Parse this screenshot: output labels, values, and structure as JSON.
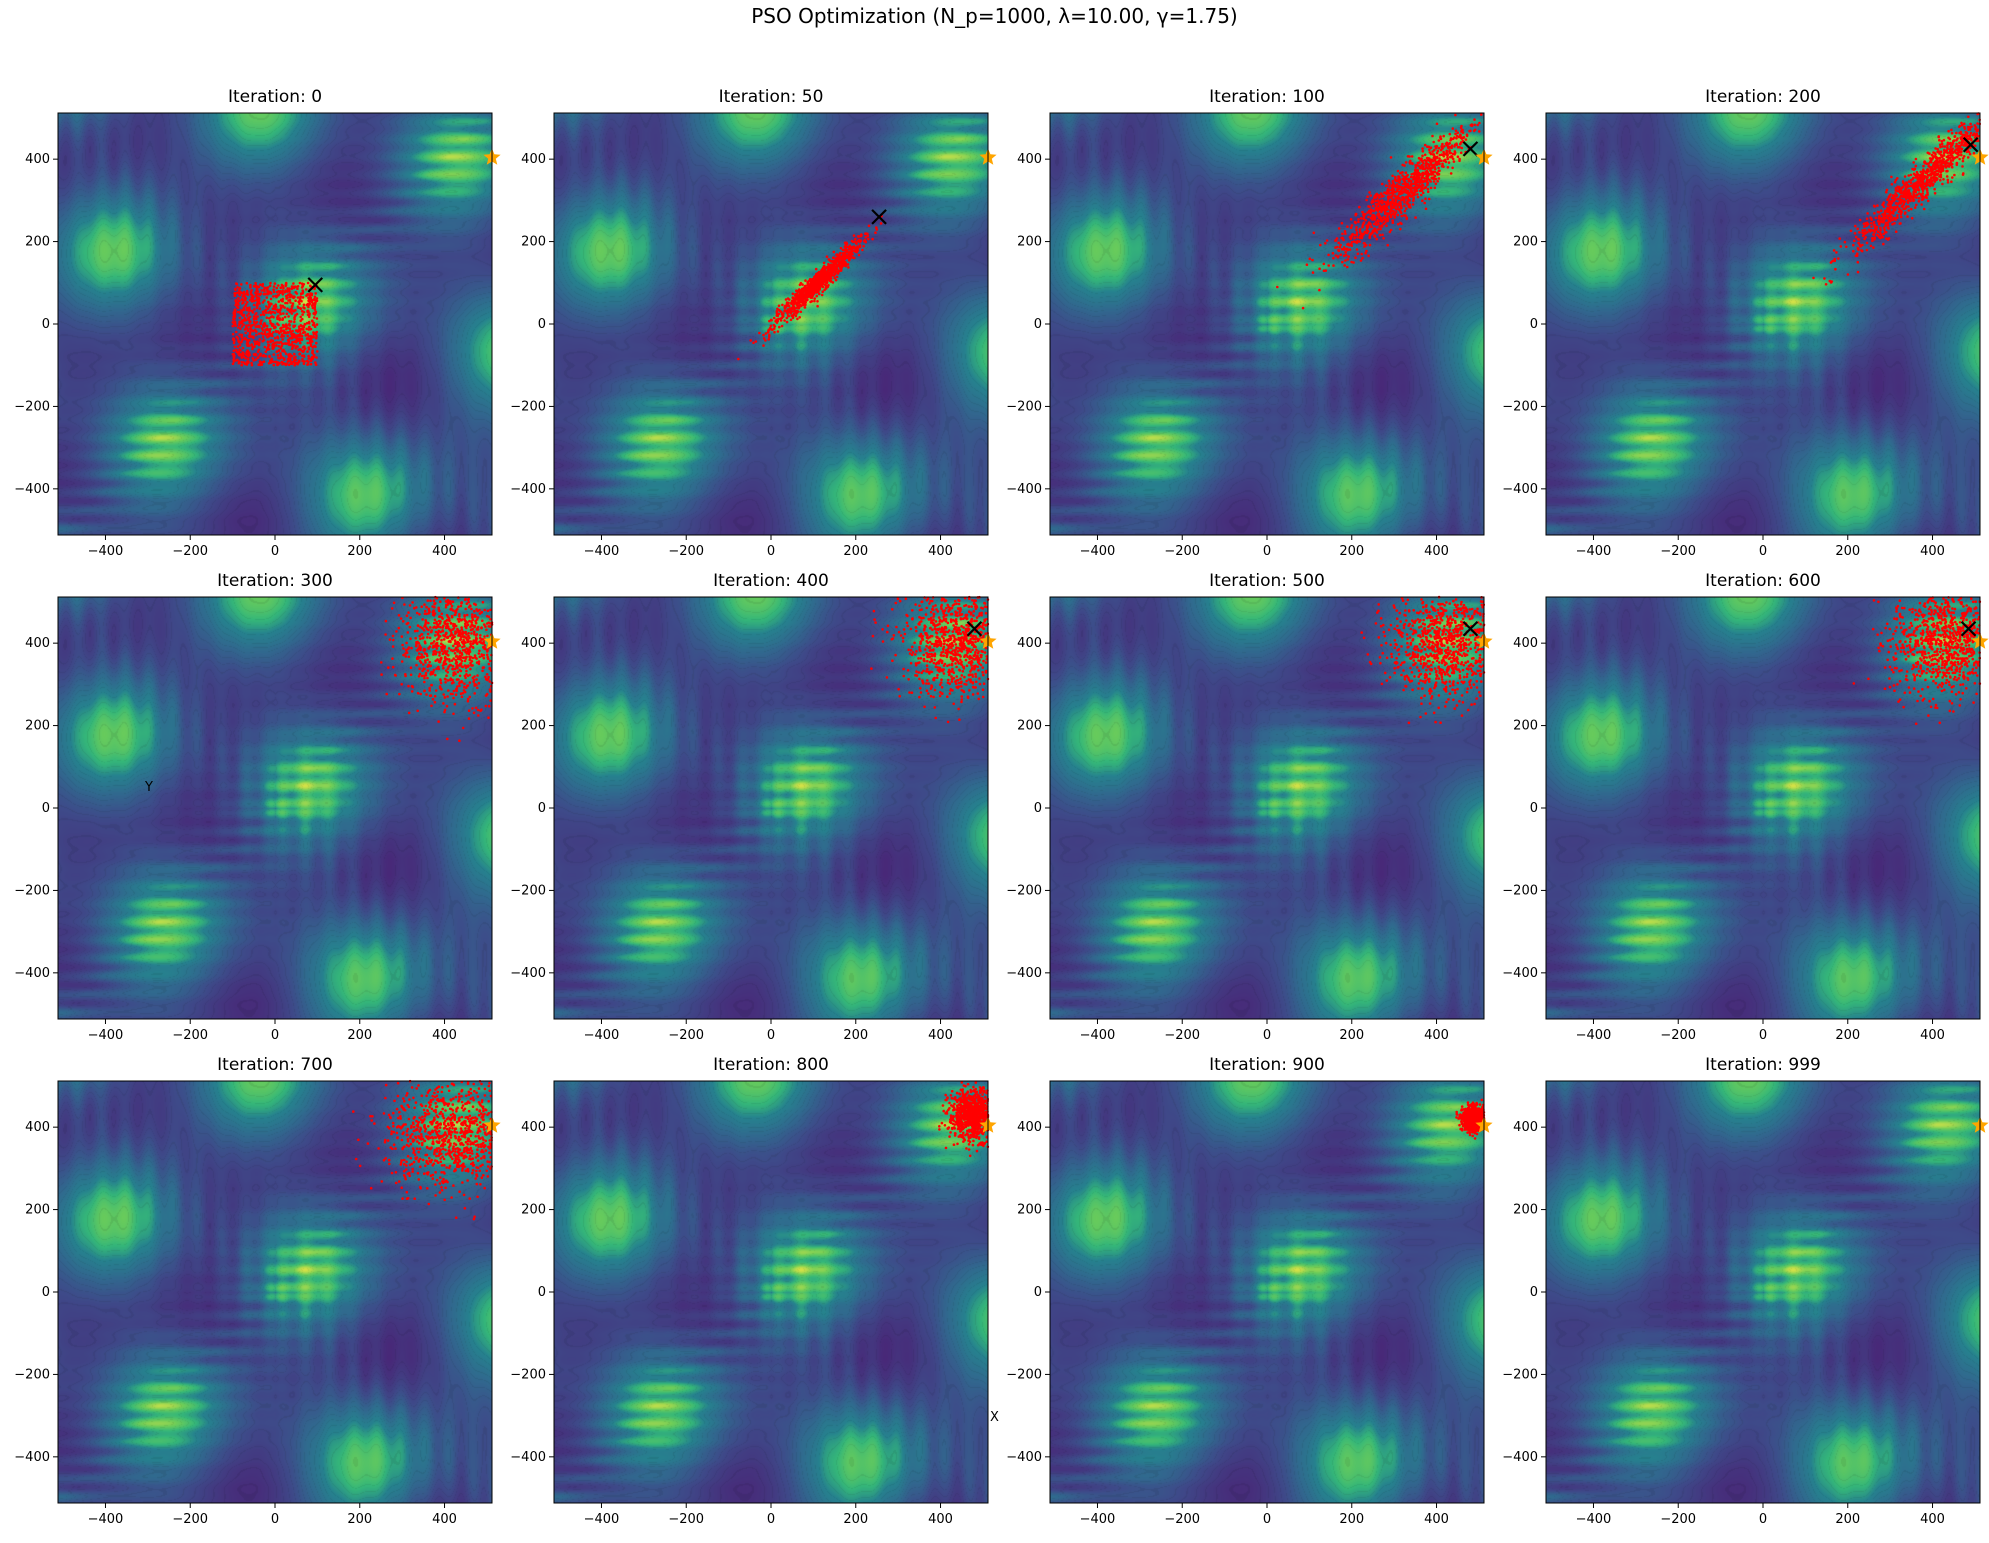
{
  "figure": {
    "title": "PSO Optimization (N_p=1000, λ=10.00, γ=1.75)"
  },
  "axes": {
    "xlim": [
      -512,
      512
    ],
    "ylim": [
      -512,
      512
    ],
    "xticks": [
      -400,
      -200,
      0,
      200,
      400
    ],
    "yticks": [
      -400,
      -200,
      0,
      200,
      400
    ],
    "grid": false
  },
  "colors": {
    "particles": "#ff0000",
    "best_marker": "#000000",
    "optimum_marker": "#ffa500",
    "colormap": "viridis"
  },
  "stray_labels": {
    "y_label": "Y",
    "x_label": "X"
  },
  "chart_data": [
    {
      "type": "scatter",
      "title": "Iteration: 0",
      "particles": {
        "center": [
          0,
          0
        ],
        "spread": [
          100,
          100
        ],
        "shape": "square",
        "count": 1000
      },
      "best": [
        95,
        95
      ],
      "optimum": [
        512,
        404
      ]
    },
    {
      "type": "scatter",
      "title": "Iteration: 50",
      "particles": {
        "center": [
          110,
          100
        ],
        "spread": [
          70,
          10
        ],
        "shape": "diagonal",
        "count": 1000
      },
      "best": [
        255,
        260
      ],
      "optimum": [
        512,
        404
      ]
    },
    {
      "type": "scatter",
      "title": "Iteration: 100",
      "particles": {
        "center": [
          320,
          320
        ],
        "spread": [
          110,
          22
        ],
        "shape": "diagonal",
        "count": 1000
      },
      "best": [
        480,
        425
      ],
      "optimum": [
        512,
        404
      ]
    },
    {
      "type": "scatter",
      "title": "Iteration: 200",
      "particles": {
        "center": [
          380,
          350
        ],
        "spread": [
          120,
          18
        ],
        "shape": "diagonal",
        "count": 1000
      },
      "best": [
        490,
        435
      ],
      "optimum": [
        512,
        404
      ]
    },
    {
      "type": "scatter",
      "title": "Iteration: 300",
      "particles": {
        "center": [
          430,
          400
        ],
        "spread": [
          70,
          70
        ],
        "shape": "cloud",
        "count": 1000
      },
      "best": null,
      "optimum": [
        512,
        404
      ]
    },
    {
      "type": "scatter",
      "title": "Iteration: 400",
      "particles": {
        "center": [
          440,
          400
        ],
        "spread": [
          65,
          65
        ],
        "shape": "cloud",
        "count": 1000
      },
      "best": [
        480,
        435
      ],
      "optimum": [
        512,
        404
      ]
    },
    {
      "type": "scatter",
      "title": "Iteration: 500",
      "particles": {
        "center": [
          420,
          400
        ],
        "spread": [
          65,
          70
        ],
        "shape": "cloud",
        "count": 1000
      },
      "best": [
        480,
        435
      ],
      "optimum": [
        512,
        404
      ]
    },
    {
      "type": "scatter",
      "title": "Iteration: 600",
      "particles": {
        "center": [
          430,
          400
        ],
        "spread": [
          65,
          65
        ],
        "shape": "cloud",
        "count": 1000
      },
      "best": [
        485,
        435
      ],
      "optimum": [
        512,
        404
      ]
    },
    {
      "type": "scatter",
      "title": "Iteration: 700",
      "particles": {
        "center": [
          420,
          380
        ],
        "spread": [
          80,
          65
        ],
        "shape": "cloud",
        "count": 1000
      },
      "best": null,
      "optimum": [
        512,
        404
      ]
    },
    {
      "type": "scatter",
      "title": "Iteration: 800",
      "particles": {
        "center": [
          480,
          430
        ],
        "spread": [
          30,
          30
        ],
        "shape": "blob",
        "count": 1000
      },
      "best": null,
      "optimum": [
        512,
        404
      ]
    },
    {
      "type": "scatter",
      "title": "Iteration: 900",
      "particles": {
        "center": [
          490,
          420
        ],
        "spread": [
          14,
          14
        ],
        "shape": "blob",
        "count": 1000
      },
      "best": null,
      "optimum": [
        512,
        404
      ]
    },
    {
      "type": "scatter",
      "title": "Iteration: 999",
      "particles": {
        "center": [
          512,
          404
        ],
        "spread": [
          0,
          0
        ],
        "shape": "blob",
        "count": 0
      },
      "best": null,
      "optimum": [
        512,
        404
      ]
    }
  ]
}
